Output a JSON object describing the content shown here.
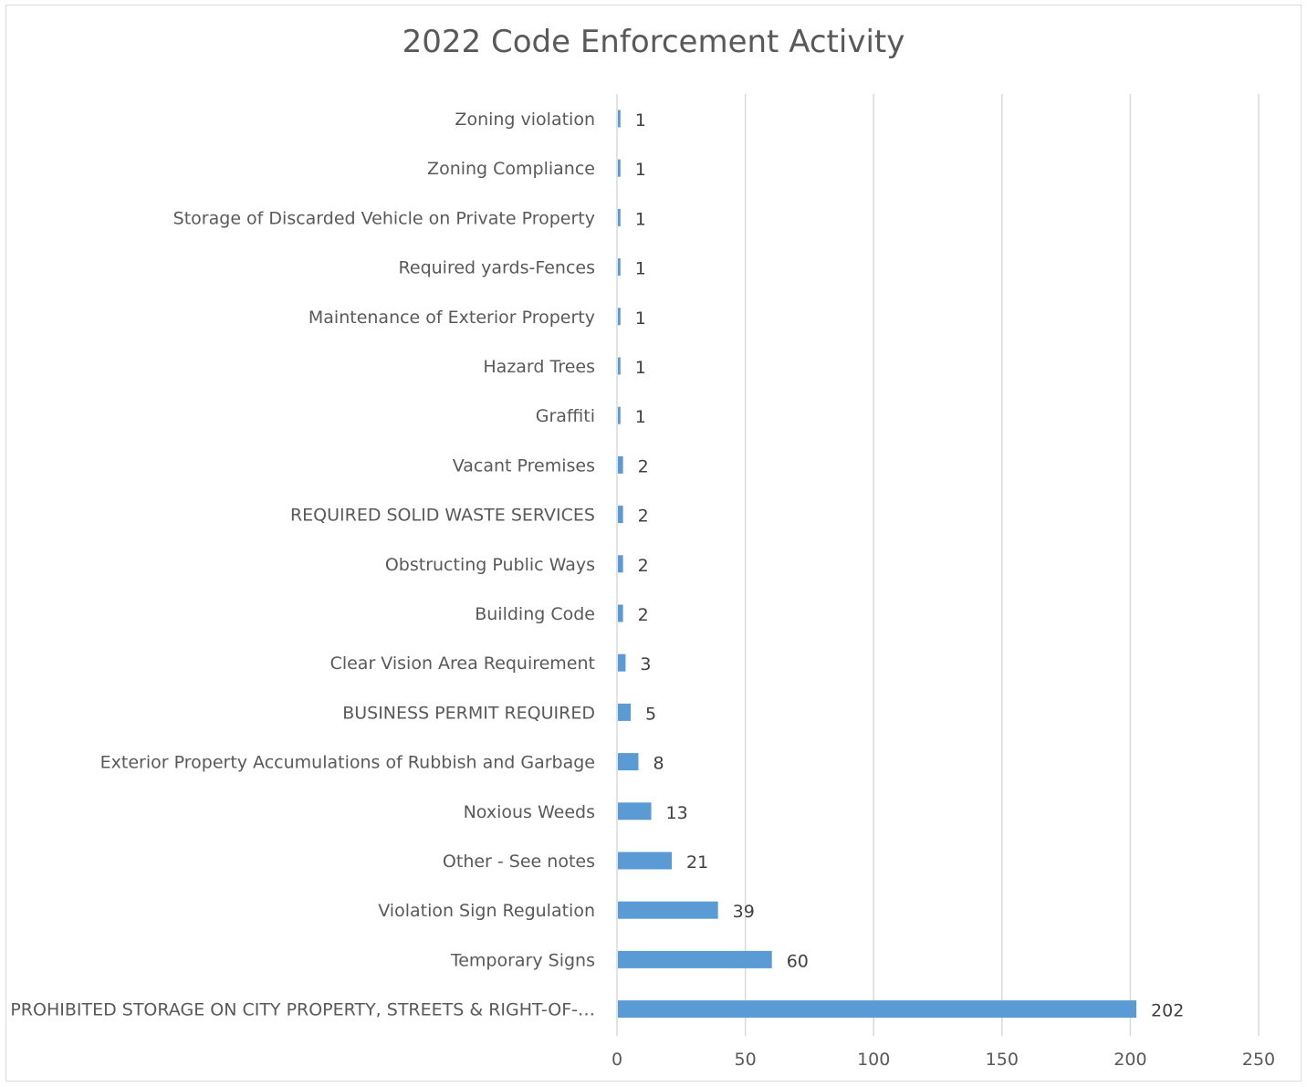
{
  "chart_data": {
    "type": "bar",
    "orientation": "horizontal",
    "title": "2022 Code Enforcement Activity",
    "xlabel": "",
    "ylabel": "",
    "xlim": [
      0,
      250
    ],
    "x_ticks": [
      0,
      50,
      100,
      150,
      200,
      250
    ],
    "grid": "vertical",
    "legend": "none",
    "bar_color": "#5b9bd5",
    "categories": [
      "Zoning violation",
      "Zoning Compliance",
      "Storage of Discarded Vehicle on Private Property",
      "Required yards-Fences",
      "Maintenance of Exterior Property",
      "Hazard Trees",
      "Graffiti",
      "Vacant Premises",
      "REQUIRED SOLID WASTE SERVICES",
      "Obstructing Public Ways",
      "Building Code",
      "Clear Vision Area Requirement",
      "BUSINESS PERMIT REQUIRED",
      "Exterior Property Accumulations of Rubbish and Garbage",
      "Noxious Weeds",
      "Other - See notes",
      "Violation Sign Regulation",
      "Temporary Signs",
      "PROHIBITED STORAGE ON CITY PROPERTY, STREETS & RIGHT-OF-…"
    ],
    "values": [
      1,
      1,
      1,
      1,
      1,
      1,
      1,
      2,
      2,
      2,
      2,
      3,
      5,
      8,
      13,
      21,
      39,
      60,
      202
    ]
  }
}
